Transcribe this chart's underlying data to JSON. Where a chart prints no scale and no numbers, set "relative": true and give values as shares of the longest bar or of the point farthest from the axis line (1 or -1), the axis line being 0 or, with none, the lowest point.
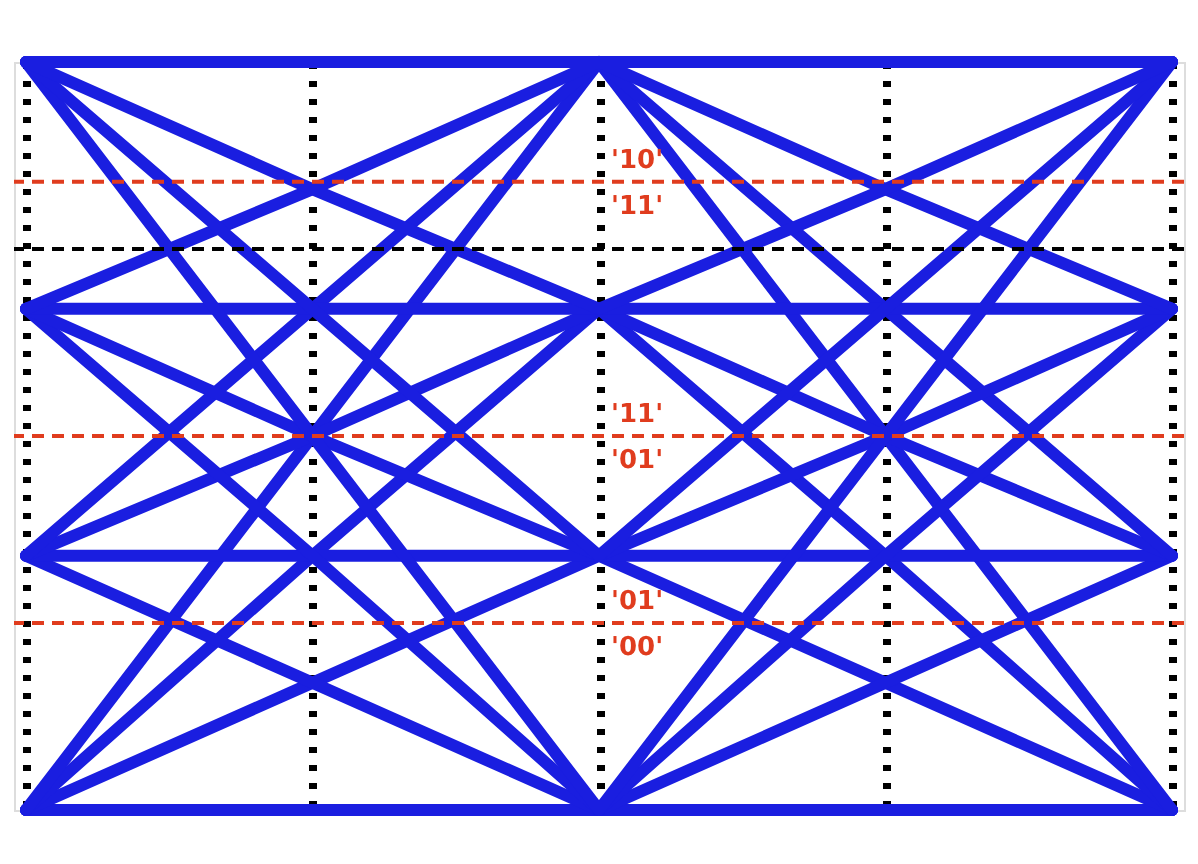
{
  "chart_data": {
    "type": "line",
    "relative": true,
    "categories": [
      null,
      null,
      null,
      null,
      null
    ],
    "grid": "x",
    "legend": false,
    "marker": "none",
    "line_style": "solid",
    "series": [
      {
        "color": "#1a1ee0",
        "values": [
          0,
          0,
          0,
          0,
          0
        ]
      },
      {
        "color": "#1a1ee0",
        "values": [
          0,
          0.17,
          0.34,
          0.17,
          0
        ]
      },
      {
        "color": "#1a1ee0",
        "values": [
          0,
          0.34,
          0.67,
          0.34,
          0
        ]
      },
      {
        "color": "#1a1ee0",
        "values": [
          0,
          0.5,
          1,
          0.5,
          0
        ]
      },
      {
        "color": "#1a1ee0",
        "values": [
          0.34,
          0.17,
          0,
          0.17,
          0.34
        ]
      },
      {
        "color": "#1a1ee0",
        "values": [
          0.34,
          0.34,
          0.34,
          0.34,
          0.34
        ]
      },
      {
        "color": "#1a1ee0",
        "values": [
          0.34,
          0.5,
          0.67,
          0.5,
          0.34
        ]
      },
      {
        "color": "#1a1ee0",
        "values": [
          0.34,
          0.67,
          1,
          0.67,
          0.34
        ]
      },
      {
        "color": "#1a1ee0",
        "values": [
          0.67,
          0.34,
          0,
          0.34,
          0.67
        ]
      },
      {
        "color": "#1a1ee0",
        "values": [
          0.67,
          0.5,
          0.34,
          0.5,
          0.67
        ]
      },
      {
        "color": "#1a1ee0",
        "values": [
          0.67,
          0.67,
          0.67,
          0.67,
          0.67
        ]
      },
      {
        "color": "#1a1ee0",
        "values": [
          0.67,
          0.83,
          1,
          0.83,
          0.67
        ]
      },
      {
        "color": "#1a1ee0",
        "values": [
          1,
          0.5,
          0,
          0.5,
          1
        ]
      },
      {
        "color": "#1a1ee0",
        "values": [
          1,
          0.67,
          0.34,
          0.67,
          1
        ]
      },
      {
        "color": "#1a1ee0",
        "values": [
          1,
          0.83,
          0.67,
          0.83,
          1
        ]
      },
      {
        "color": "#1a1ee0",
        "values": [
          1,
          1,
          1,
          1,
          1
        ]
      }
    ],
    "ref_lines": [
      {
        "axis": "y",
        "value": 0.84,
        "color": "#e03c1e",
        "line_style": "dashed"
      },
      {
        "axis": "y",
        "value": 0.5,
        "color": "#e03c1e",
        "line_style": "dashed"
      },
      {
        "axis": "y",
        "value": 0.25,
        "color": "#e03c1e",
        "line_style": "dashed"
      },
      {
        "axis": "y",
        "value": 0.75,
        "color": "#000000",
        "line_style": "dashed"
      }
    ],
    "annotations": [
      "'10'",
      "'11'",
      "'11'",
      "'01'",
      "'01'",
      "'00'"
    ]
  }
}
